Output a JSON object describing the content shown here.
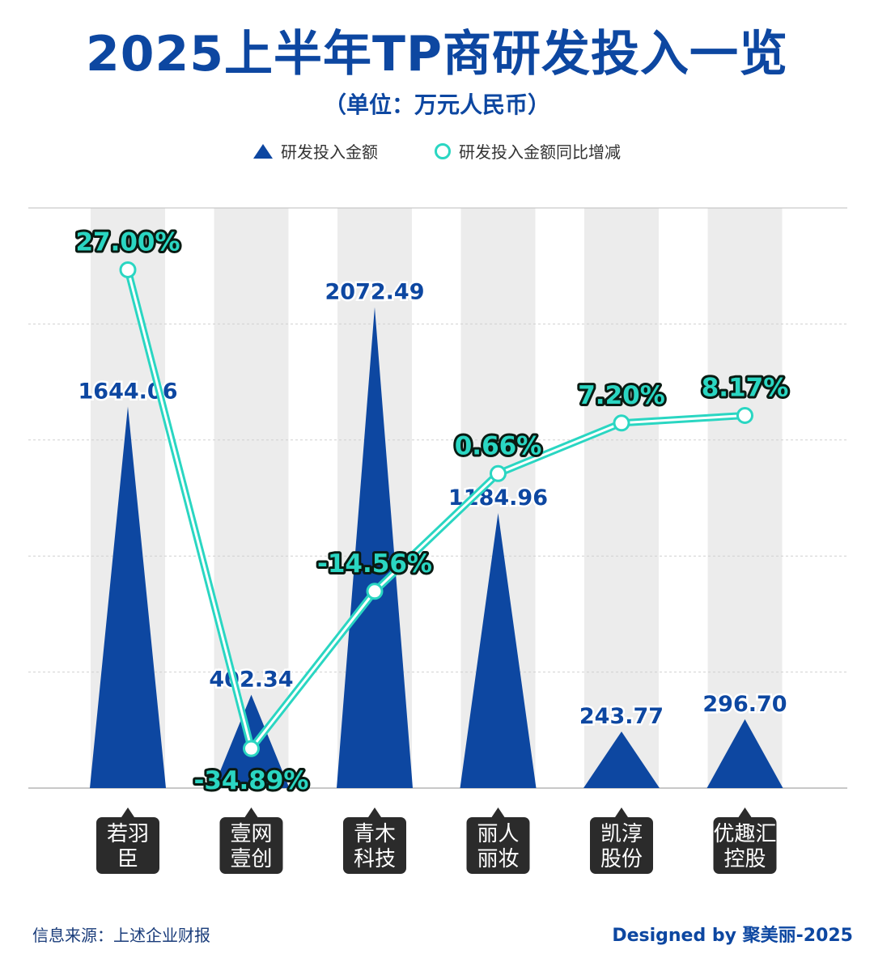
{
  "title": "2025上半年TP商研发投入一览",
  "subtitle": "（单位：万元人民币）",
  "legend": {
    "series1": "研发投入金额",
    "series2": "研发投入金额同比增减"
  },
  "footer": {
    "source": "信息来源：上述企业财报",
    "credit": "Designed by 聚美丽-2025"
  },
  "colors": {
    "bar": "#0d47a1",
    "line": "#2ad6c2",
    "column_bg": "#ececec",
    "label_box": "#2b2b2b"
  },
  "chart_data": {
    "type": "bar",
    "title": "2025上半年TP商研发投入一览",
    "categories": [
      "若羽臣",
      "壹网壹创",
      "青木科技",
      "丽人丽妆",
      "凯淳股份",
      "优趣汇控股"
    ],
    "category_lines": [
      [
        "若羽",
        "臣"
      ],
      [
        "壹网",
        "壹创"
      ],
      [
        "青木",
        "科技"
      ],
      [
        "丽人",
        "丽妆"
      ],
      [
        "凯淳",
        "股份"
      ],
      [
        "优趣汇",
        "控股"
      ]
    ],
    "series": [
      {
        "name": "研发投入金额",
        "type": "bar",
        "values": [
          1644.06,
          402.34,
          2072.49,
          1184.96,
          243.77,
          296.7
        ],
        "labels": [
          "1644.06",
          "402.34",
          "2072.49",
          "1184.96",
          "243.77",
          "296.70"
        ]
      },
      {
        "name": "研发投入金额同比增减",
        "type": "line",
        "values": [
          27.0,
          -34.89,
          -14.56,
          0.66,
          7.2,
          8.17
        ],
        "labels": [
          "27.00%",
          "-34.89%",
          "-14.56%",
          "0.66%",
          "7.20%",
          "8.17%"
        ]
      }
    ],
    "ylim": [
      0,
      2500
    ],
    "y2lim": [
      -40,
      35
    ],
    "grid": true,
    "legend_position": "top"
  }
}
